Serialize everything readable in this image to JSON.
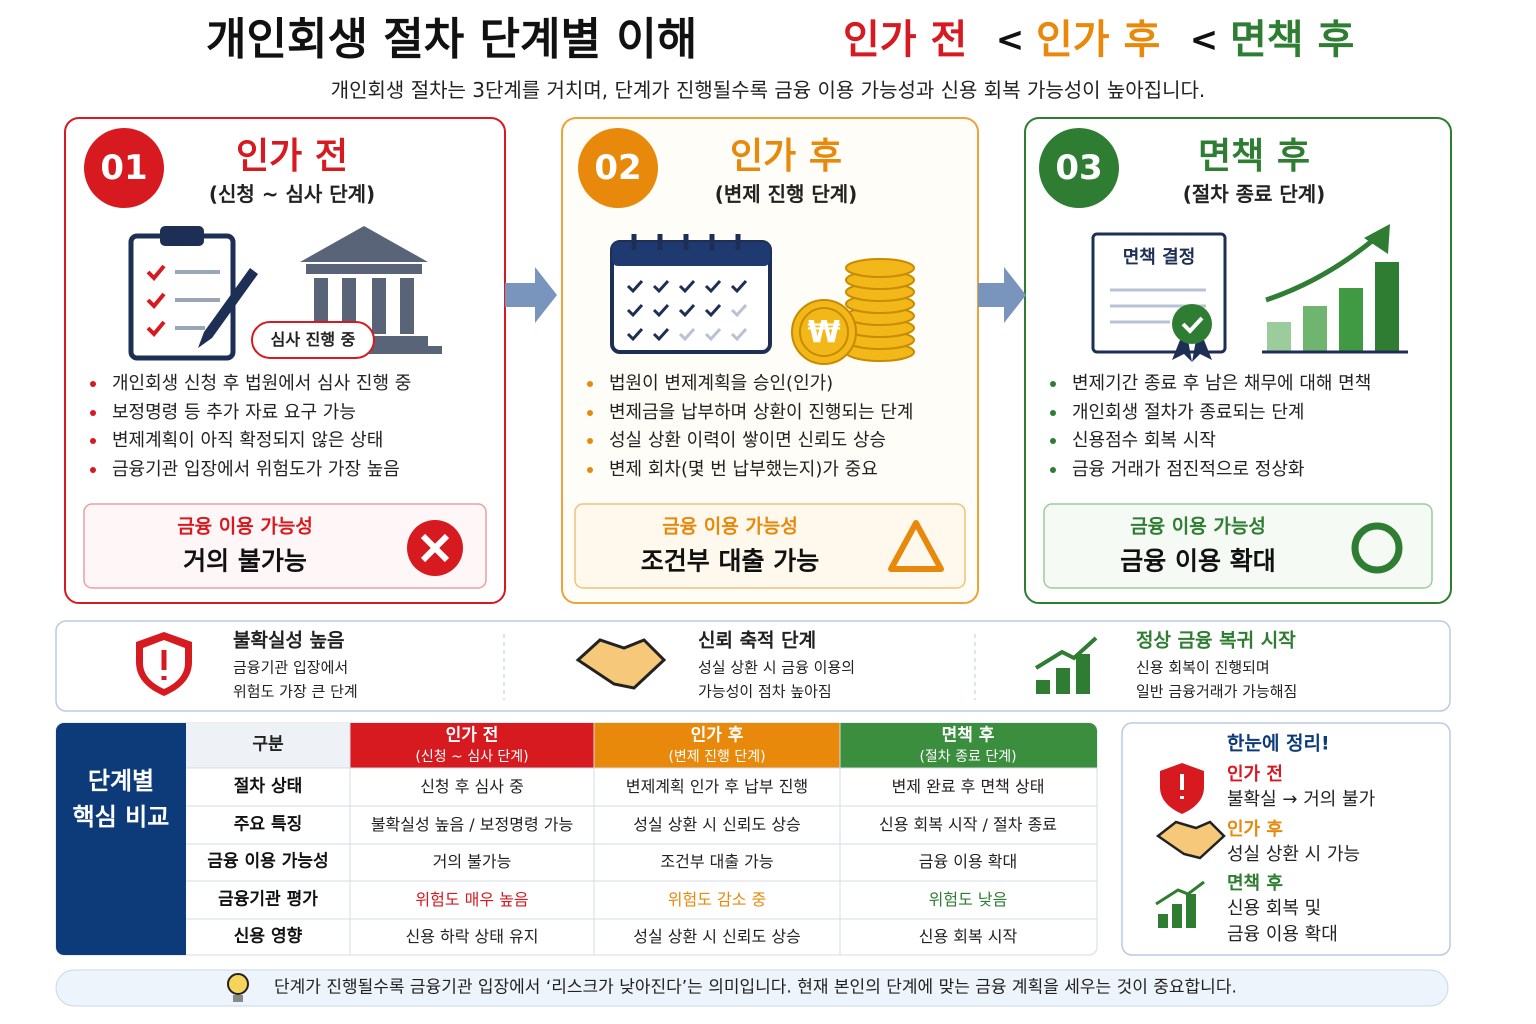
{
  "header": {
    "title": "개인회생 절차 단계별 이해",
    "stage_titles": [
      "인가 전",
      "인가 후",
      "면책 후"
    ],
    "separator": "<",
    "subtitle": "개인회생 절차는 3단계를 거치며, 단계가 진행될수록 금융 이용 가능성과 신용 회복 가능성이 높아집니다."
  },
  "stages": [
    {
      "number": "01",
      "title": "인가 전",
      "subtitle": "(신청 ~ 심사 단계)",
      "badge": "심사 진행 중",
      "bullets": [
        "개인회생 신청 후 법원에서 심사 진행 중",
        "보정명령 등 추가 자료 요구 가능",
        "변제계획이 아직 확정되지 않은 상태",
        "금융기관 입장에서 위험도가 가장 높음"
      ],
      "finance_label": "금융 이용 가능성",
      "finance_value": "거의 불가능"
    },
    {
      "number": "02",
      "title": "인가 후",
      "subtitle": "(변제 진행 단계)",
      "coin": "₩",
      "bullets": [
        "법원이 변제계획을 승인(인가)",
        "변제금을 납부하며 상환이 진행되는 단계",
        "성실 상환 이력이 쌓이면 신뢰도 상승",
        "변제 회차(몇 번 납부했는지)가 중요"
      ],
      "finance_label": "금융 이용 가능성",
      "finance_value": "조건부 대출 가능"
    },
    {
      "number": "03",
      "title": "면책 후",
      "subtitle": "(절차 종료 단계)",
      "badge": "면책 결정",
      "bullets": [
        "변제기간 종료 후 남은 채무에 대해 면책",
        "개인회생 절차가 종료되는 단계",
        "신용점수 회복 시작",
        "금융 거래가 점진적으로 정상화"
      ],
      "finance_label": "금융 이용 가능성",
      "finance_value": "금융 이용 확대"
    }
  ],
  "summary": [
    {
      "title": "불확실성 높음",
      "lines": [
        "금융기관 입장에서",
        "위험도 가장 큰 단계"
      ]
    },
    {
      "title": "신뢰 축적 단계",
      "lines": [
        "성실 상환 시 금융 이용의",
        "가능성이 점차 높아짐"
      ]
    },
    {
      "title": "정상 금융 복귀 시작",
      "lines": [
        "신용 회복이 진행되며",
        "일반 금융거래가 가능해짐"
      ]
    }
  ],
  "table": {
    "side_title": [
      "단계별",
      "핵심 비교"
    ],
    "corner": "구분",
    "columns": [
      {
        "title": "인가 전",
        "sub": "(신청 ~ 심사 단계)"
      },
      {
        "title": "인가 후",
        "sub": "(변제 진행 단계)"
      },
      {
        "title": "면책 후",
        "sub": "(절차 종료 단계)"
      }
    ],
    "rows": [
      [
        "절차 상태",
        "신청 후 심사 중",
        "변제계획 인가 후 납부 진행",
        "변제 완료 후 면책 상태"
      ],
      [
        "주요 특징",
        "불확실성 높음 / 보정명령 가능",
        "성실 상환 시 신뢰도 상승",
        "신용 회복 시작 / 절차 종료"
      ],
      [
        "금융 이용 가능성",
        "거의 불가능",
        "조건부 대출 가능",
        "금융 이용 확대"
      ],
      [
        "금융기관 평가",
        "위험도 매우 높음",
        "위험도 감소 중",
        "위험도 낮음"
      ],
      [
        "신용 영향",
        "신용 하락 상태 유지",
        "성실 상환 시 신뢰도 상승",
        "신용 회복 시작"
      ]
    ]
  },
  "recap": {
    "title": "한눈에 정리!",
    "items": [
      {
        "stage": "인가 전",
        "lines": [
          "불확실 → 거의 불가"
        ]
      },
      {
        "stage": "인가 후",
        "lines": [
          "성실 상환 시 가능"
        ]
      },
      {
        "stage": "면책 후",
        "lines": [
          "신용 회복 및",
          "금융 이용 확대"
        ]
      }
    ]
  },
  "footer": "단계가 진행될수록 금융기관 입장에서 ‘리스크가 낮아진다’는 의미입니다. 현재 본인의 단계에 맞는 금융 계획을 세우는 것이 중요합니다."
}
